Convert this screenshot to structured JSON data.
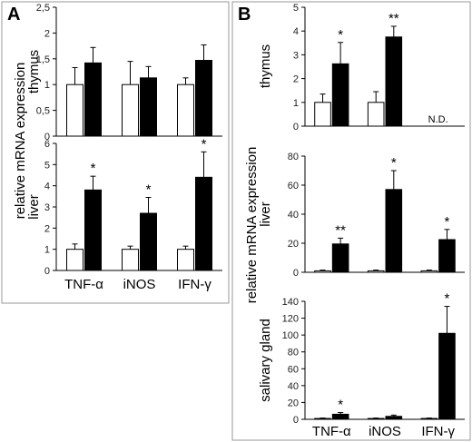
{
  "figure": {
    "panel_a_label": "A",
    "panel_b_label": "B",
    "panel_a_ylabel": "relative mRNA expression",
    "panel_b_ylabel": "relative mRNA expression"
  },
  "chart_data": [
    {
      "id": "A-thymus",
      "type": "bar",
      "ylabel": "thymus",
      "categories": [
        "TNF-α",
        "iNOS",
        "IFN-γ"
      ],
      "series": [
        {
          "color": "#ffffff",
          "values": [
            1.0,
            1.0,
            1.0
          ],
          "errors": [
            0.33,
            0.45,
            0.13
          ]
        },
        {
          "color": "#000000",
          "values": [
            1.42,
            1.13,
            1.47
          ],
          "errors": [
            0.3,
            0.22,
            0.3
          ]
        }
      ],
      "ylim": [
        0,
        2.5
      ],
      "yticks": [
        0,
        0.5,
        1,
        1.5,
        2,
        2.5
      ],
      "ytick_labels": [
        "0",
        "0,5",
        "1",
        "1,5",
        "2",
        "2,5"
      ],
      "significance": [
        "",
        "",
        ""
      ],
      "notes": [
        "",
        "",
        ""
      ],
      "show_categories": false
    },
    {
      "id": "A-liver",
      "type": "bar",
      "ylabel": "liver",
      "categories": [
        "TNF-α",
        "iNOS",
        "IFN-γ"
      ],
      "series": [
        {
          "color": "#ffffff",
          "values": [
            1.0,
            1.0,
            1.0
          ],
          "errors": [
            0.25,
            0.15,
            0.15
          ]
        },
        {
          "color": "#000000",
          "values": [
            3.8,
            2.7,
            4.4
          ],
          "errors": [
            0.65,
            0.75,
            1.2
          ]
        }
      ],
      "ylim": [
        0,
        6
      ],
      "yticks": [
        0,
        1,
        2,
        3,
        4,
        5,
        6
      ],
      "ytick_labels": [
        "0",
        "1",
        "2",
        "3",
        "4",
        "5",
        "6"
      ],
      "significance": [
        "*",
        "*",
        "*"
      ],
      "notes": [
        "",
        "",
        ""
      ],
      "show_categories": true
    },
    {
      "id": "B-thymus",
      "type": "bar",
      "ylabel": "thymus",
      "categories": [
        "TNF-α",
        "iNOS",
        "IFN-γ"
      ],
      "series": [
        {
          "color": "#ffffff",
          "values": [
            1.0,
            1.0,
            null
          ],
          "errors": [
            0.35,
            0.45,
            0
          ]
        },
        {
          "color": "#000000",
          "values": [
            2.62,
            3.75,
            null
          ],
          "errors": [
            0.9,
            0.45,
            0
          ]
        }
      ],
      "ylim": [
        0,
        5
      ],
      "yticks": [
        0,
        1,
        2,
        3,
        4,
        5
      ],
      "ytick_labels": [
        "0",
        "1",
        "2",
        "3",
        "4",
        "5"
      ],
      "significance": [
        "*",
        "**",
        ""
      ],
      "notes": [
        "",
        "",
        "N.D."
      ],
      "show_categories": false
    },
    {
      "id": "B-liver",
      "type": "bar",
      "ylabel": "liver",
      "categories": [
        "TNF-α",
        "iNOS",
        "IFN-γ"
      ],
      "series": [
        {
          "color": "#ffffff",
          "values": [
            1.0,
            1.0,
            1.0
          ],
          "errors": [
            0.5,
            0.5,
            0.5
          ]
        },
        {
          "color": "#000000",
          "values": [
            19.5,
            57.0,
            22.5
          ],
          "errors": [
            4.0,
            13.0,
            7.0
          ]
        }
      ],
      "ylim": [
        0,
        80
      ],
      "yticks": [
        0,
        20,
        40,
        60,
        80
      ],
      "ytick_labels": [
        "0",
        "20",
        "40",
        "60",
        "80"
      ],
      "significance": [
        "**",
        "*",
        "*"
      ],
      "notes": [
        "",
        "",
        ""
      ],
      "show_categories": false
    },
    {
      "id": "B-salivary",
      "type": "bar",
      "ylabel": "salivary gland",
      "categories": [
        "TNF-α",
        "iNOS",
        "IFN-γ"
      ],
      "series": [
        {
          "color": "#ffffff",
          "values": [
            1.0,
            1.0,
            1.0
          ],
          "errors": [
            0.5,
            0.5,
            0.5
          ]
        },
        {
          "color": "#000000",
          "values": [
            6.0,
            3.5,
            102.0
          ],
          "errors": [
            2.0,
            1.5,
            32.0
          ]
        }
      ],
      "ylim": [
        0,
        140
      ],
      "yticks": [
        0,
        20,
        40,
        60,
        80,
        100,
        120,
        140
      ],
      "ytick_labels": [
        "0",
        "20",
        "40",
        "60",
        "80",
        "100",
        "120",
        "140"
      ],
      "significance": [
        "*",
        "",
        "*"
      ],
      "notes": [
        "",
        "",
        ""
      ],
      "show_categories": true
    }
  ]
}
